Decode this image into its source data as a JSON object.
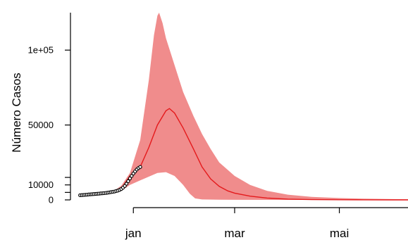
{
  "chart_data": {
    "type": "line",
    "title": "",
    "xlabel": "",
    "ylabel": "Número Casos",
    "ylim": [
      0,
      125000
    ],
    "y_ticks": [
      {
        "value": 0,
        "label": "0"
      },
      {
        "value": 5000,
        "label": ""
      },
      {
        "value": 10000,
        "label": "10000"
      },
      {
        "value": 15000,
        "label": ""
      },
      {
        "value": 50000,
        "label": "50000"
      },
      {
        "value": 100000,
        "label": "1e+05"
      }
    ],
    "x_domain": [
      "2020-11-27",
      "2021-06-10"
    ],
    "x_ticks": [
      {
        "date": "2021-01-01",
        "label": "jan"
      },
      {
        "date": "2021-03-01",
        "label": "mar"
      },
      {
        "date": "2021-05-01",
        "label": "mai"
      }
    ],
    "colors": {
      "band": "#f08c8c",
      "median": "#e41a1c",
      "observed_fill": "#ffffff",
      "observed_stroke": "#000000"
    },
    "series": [
      {
        "role": "observed",
        "points": [
          {
            "x": "2020-12-01",
            "y": 3100
          },
          {
            "x": "2020-12-02",
            "y": 3200
          },
          {
            "x": "2020-12-03",
            "y": 3300
          },
          {
            "x": "2020-12-04",
            "y": 3400
          },
          {
            "x": "2020-12-05",
            "y": 3500
          },
          {
            "x": "2020-12-06",
            "y": 3600
          },
          {
            "x": "2020-12-07",
            "y": 3700
          },
          {
            "x": "2020-12-08",
            "y": 3800
          },
          {
            "x": "2020-12-09",
            "y": 3900
          },
          {
            "x": "2020-12-10",
            "y": 4000
          },
          {
            "x": "2020-12-11",
            "y": 4100
          },
          {
            "x": "2020-12-12",
            "y": 4200
          },
          {
            "x": "2020-12-13",
            "y": 4300
          },
          {
            "x": "2020-12-14",
            "y": 4400
          },
          {
            "x": "2020-12-15",
            "y": 4500
          },
          {
            "x": "2020-12-16",
            "y": 4650
          },
          {
            "x": "2020-12-17",
            "y": 4800
          },
          {
            "x": "2020-12-18",
            "y": 5000
          },
          {
            "x": "2020-12-19",
            "y": 5200
          },
          {
            "x": "2020-12-20",
            "y": 5400
          },
          {
            "x": "2020-12-21",
            "y": 5600
          },
          {
            "x": "2020-12-22",
            "y": 5900
          },
          {
            "x": "2020-12-23",
            "y": 6200
          },
          {
            "x": "2020-12-24",
            "y": 6700
          },
          {
            "x": "2020-12-25",
            "y": 7300
          },
          {
            "x": "2020-12-26",
            "y": 8200
          },
          {
            "x": "2020-12-27",
            "y": 9300
          },
          {
            "x": "2020-12-28",
            "y": 10800
          },
          {
            "x": "2020-12-29",
            "y": 12500
          },
          {
            "x": "2020-12-30",
            "y": 14300
          },
          {
            "x": "2020-12-31",
            "y": 16000
          },
          {
            "x": "2021-01-01",
            "y": 17600
          },
          {
            "x": "2021-01-02",
            "y": 19000
          },
          {
            "x": "2021-01-03",
            "y": 20300
          },
          {
            "x": "2021-01-04",
            "y": 21300
          },
          {
            "x": "2021-01-05",
            "y": 22000
          }
        ]
      },
      {
        "role": "median",
        "points": [
          {
            "x": "2020-12-20",
            "y": 5400
          },
          {
            "x": "2020-12-25",
            "y": 7500
          },
          {
            "x": "2020-12-30",
            "y": 16000
          },
          {
            "x": "2021-01-05",
            "y": 22000
          },
          {
            "x": "2021-01-10",
            "y": 35000
          },
          {
            "x": "2021-01-15",
            "y": 50000
          },
          {
            "x": "2021-01-20",
            "y": 59500
          },
          {
            "x": "2021-01-22",
            "y": 61000
          },
          {
            "x": "2021-01-25",
            "y": 58000
          },
          {
            "x": "2021-01-30",
            "y": 48000
          },
          {
            "x": "2021-02-05",
            "y": 34000
          },
          {
            "x": "2021-02-10",
            "y": 22000
          },
          {
            "x": "2021-02-15",
            "y": 14000
          },
          {
            "x": "2021-02-20",
            "y": 9000
          },
          {
            "x": "2021-02-25",
            "y": 6000
          },
          {
            "x": "2021-03-01",
            "y": 4500
          },
          {
            "x": "2021-03-10",
            "y": 2500
          },
          {
            "x": "2021-03-20",
            "y": 1200
          },
          {
            "x": "2021-04-01",
            "y": 500
          },
          {
            "x": "2021-04-15",
            "y": 200
          },
          {
            "x": "2021-05-01",
            "y": 80
          },
          {
            "x": "2021-05-15",
            "y": 30
          },
          {
            "x": "2021-06-01",
            "y": 10
          },
          {
            "x": "2021-06-10",
            "y": 5
          }
        ]
      },
      {
        "role": "interval",
        "upper": [
          {
            "x": "2020-12-20",
            "y": 5400
          },
          {
            "x": "2020-12-25",
            "y": 9500
          },
          {
            "x": "2020-12-30",
            "y": 18000
          },
          {
            "x": "2021-01-05",
            "y": 40000
          },
          {
            "x": "2021-01-10",
            "y": 80000
          },
          {
            "x": "2021-01-13",
            "y": 110000
          },
          {
            "x": "2021-01-15",
            "y": 123000
          },
          {
            "x": "2021-01-16",
            "y": 125000
          },
          {
            "x": "2021-01-18",
            "y": 118000
          },
          {
            "x": "2021-01-20",
            "y": 108000
          },
          {
            "x": "2021-01-25",
            "y": 90000
          },
          {
            "x": "2021-01-30",
            "y": 72000
          },
          {
            "x": "2021-02-05",
            "y": 56000
          },
          {
            "x": "2021-02-10",
            "y": 44000
          },
          {
            "x": "2021-02-15",
            "y": 34000
          },
          {
            "x": "2021-02-20",
            "y": 25000
          },
          {
            "x": "2021-03-01",
            "y": 16000
          },
          {
            "x": "2021-03-10",
            "y": 10000
          },
          {
            "x": "2021-03-20",
            "y": 6000
          },
          {
            "x": "2021-04-01",
            "y": 3500
          },
          {
            "x": "2021-04-15",
            "y": 2000
          },
          {
            "x": "2021-05-01",
            "y": 1200
          },
          {
            "x": "2021-05-15",
            "y": 800
          },
          {
            "x": "2021-06-01",
            "y": 500
          },
          {
            "x": "2021-06-10",
            "y": 400
          }
        ],
        "lower": [
          {
            "x": "2020-12-20",
            "y": 5400
          },
          {
            "x": "2020-12-25",
            "y": 6000
          },
          {
            "x": "2020-12-30",
            "y": 10000
          },
          {
            "x": "2021-01-05",
            "y": 13000
          },
          {
            "x": "2021-01-10",
            "y": 15500
          },
          {
            "x": "2021-01-15",
            "y": 18000
          },
          {
            "x": "2021-01-20",
            "y": 18500
          },
          {
            "x": "2021-01-25",
            "y": 16000
          },
          {
            "x": "2021-01-30",
            "y": 10000
          },
          {
            "x": "2021-02-03",
            "y": 4000
          },
          {
            "x": "2021-02-06",
            "y": 1000
          },
          {
            "x": "2021-02-10",
            "y": 300
          },
          {
            "x": "2021-02-20",
            "y": 100
          },
          {
            "x": "2021-03-01",
            "y": 50
          },
          {
            "x": "2021-04-01",
            "y": 20
          },
          {
            "x": "2021-06-10",
            "y": 0
          }
        ]
      }
    ],
    "grid": false,
    "legend": "none"
  }
}
